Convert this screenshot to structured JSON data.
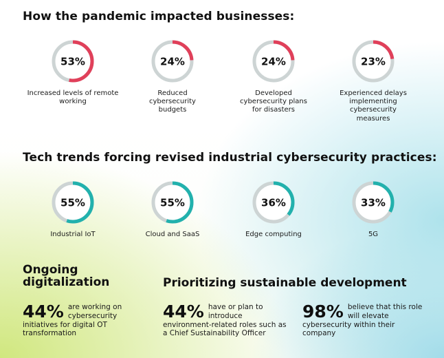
{
  "colors": {
    "pandemic_accent": "#e0405a",
    "tech_accent": "#22b1ad",
    "ring_track": "#cdd4d4"
  },
  "pandemic": {
    "title": "How the pandemic impacted businesses:",
    "items": [
      {
        "value": "53%",
        "fraction": 0.53,
        "label": "Increased levels of remote working"
      },
      {
        "value": "24%",
        "fraction": 0.24,
        "label": "Reduced cybersecurity budgets"
      },
      {
        "value": "24%",
        "fraction": 0.24,
        "label": "Developed cybersecurity plans for disasters"
      },
      {
        "value": "23%",
        "fraction": 0.23,
        "label": "Experienced delays implementing cybersecurity measures"
      }
    ]
  },
  "tech": {
    "title": "Tech trends forcing revised industrial cybersecurity practices:",
    "items": [
      {
        "value": "55%",
        "fraction": 0.55,
        "label": "Industrial IoT"
      },
      {
        "value": "55%",
        "fraction": 0.55,
        "label": "Cloud and SaaS"
      },
      {
        "value": "36%",
        "fraction": 0.36,
        "label": "Edge computing"
      },
      {
        "value": "33%",
        "fraction": 0.33,
        "label": "5G"
      }
    ]
  },
  "ongoing": {
    "title_line1": "Ongoing",
    "title_line2": "digitalization",
    "stat": {
      "value": "44%",
      "text": "are working on cybersecurity initiatives for digital OT transformation"
    }
  },
  "sustainable": {
    "title": "Prioritizing sustainable development",
    "stats": [
      {
        "value": "44%",
        "text": "have or plan to introduce environment-related roles such as a Chief Sustainability Officer"
      },
      {
        "value": "98%",
        "text": "believe that this role will elevate cybersecurity within their company"
      }
    ]
  }
}
